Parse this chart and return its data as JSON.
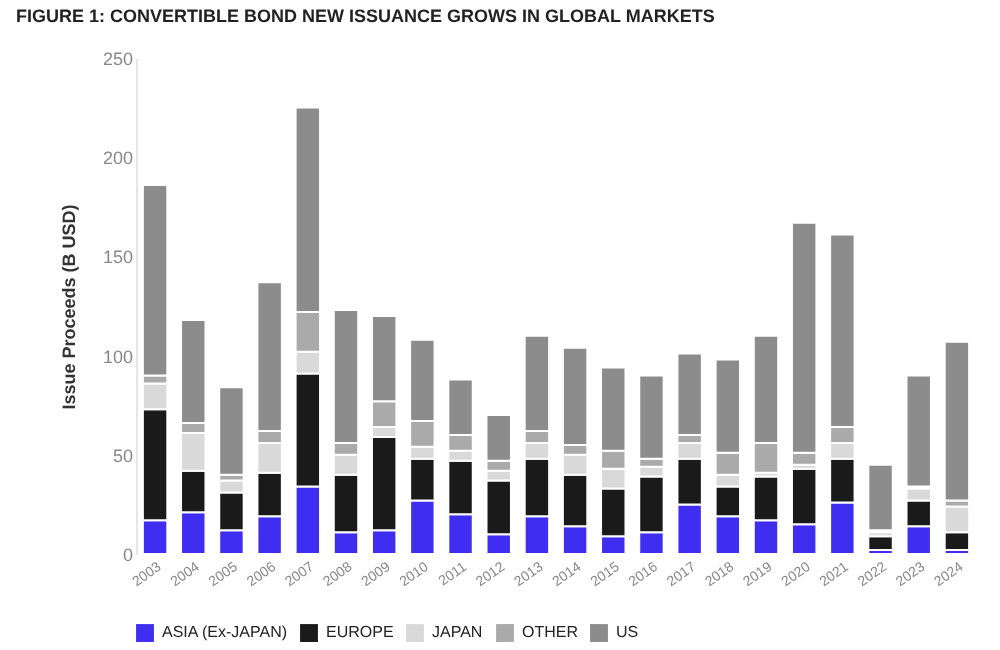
{
  "chart_data": {
    "type": "bar",
    "title": "FIGURE 1:  CONVERTIBLE BOND NEW ISSUANCE GROWS IN GLOBAL MARKETS",
    "ylabel": "Issue Proceeds (B USD)",
    "stacked": true,
    "legend": "bottom left",
    "grid": false,
    "categories": [
      "2003",
      "2004",
      "2005",
      "2006",
      "2007",
      "2008",
      "2009",
      "2010",
      "2011",
      "2012",
      "2013",
      "2014",
      "2015",
      "2016",
      "2017",
      "2018",
      "2019",
      "2020",
      "2021",
      "2022",
      "2023",
      "2024"
    ],
    "ylim": [
      0,
      250
    ],
    "yticks": [
      0,
      50,
      100,
      150,
      200,
      250
    ],
    "series": [
      {
        "name": "ASIA (Ex-JAPAN)",
        "color": "#3f2ef0",
        "values": [
          17,
          21,
          12,
          19,
          34,
          11,
          12,
          27,
          20,
          10,
          19,
          14,
          9,
          11,
          25,
          19,
          17,
          15,
          26,
          2,
          14,
          2
        ]
      },
      {
        "name": "EUROPE",
        "color": "#1a1a1a",
        "values": [
          56,
          21,
          19,
          22,
          57,
          29,
          47,
          21,
          27,
          27,
          29,
          26,
          24,
          28,
          23,
          15,
          22,
          28,
          22,
          7,
          13,
          9
        ]
      },
      {
        "name": "JAPAN",
        "color": "#d9d9d9",
        "values": [
          13,
          19,
          6,
          15,
          11,
          10,
          5,
          6,
          5,
          5,
          8,
          10,
          10,
          5,
          8,
          6,
          2,
          2,
          8,
          2,
          6,
          13
        ]
      },
      {
        "name": "OTHER",
        "color": "#aaaaaa",
        "values": [
          4,
          5,
          3,
          6,
          20,
          6,
          13,
          13,
          8,
          5,
          6,
          5,
          9,
          4,
          4,
          11,
          15,
          6,
          8,
          1,
          1,
          3
        ]
      },
      {
        "name": "US",
        "color": "#8c8c8c",
        "values": [
          96,
          52,
          44,
          75,
          103,
          67,
          43,
          41,
          28,
          23,
          48,
          49,
          42,
          42,
          41,
          47,
          54,
          116,
          97,
          33,
          56,
          80
        ]
      }
    ]
  }
}
